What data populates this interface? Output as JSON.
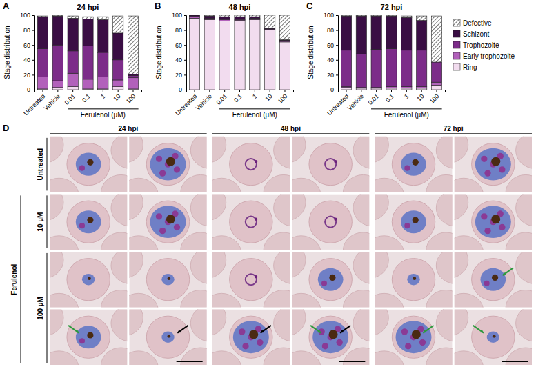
{
  "chart_data": [
    {
      "type": "bar",
      "stacked": true,
      "panel_label": "A",
      "title": "24 hpi",
      "ylabel": "Stage distribution",
      "categories": [
        "Untreated",
        "Vehicle",
        "0.01",
        "0.1",
        "1",
        "10",
        "100"
      ],
      "x_group": {
        "label": "Ferulenol (µM)",
        "categories": [
          "0.01",
          "0.1",
          "1",
          "10",
          "100"
        ]
      },
      "ylim": [
        0,
        100
      ],
      "yticks": [
        0,
        20,
        40,
        60,
        80,
        100
      ],
      "series": [
        {
          "name": "Ring",
          "color": "#f2dcef",
          "values": [
            1,
            3,
            4,
            1,
            1,
            4,
            1
          ]
        },
        {
          "name": "Early trophozoite",
          "color": "#b261bb",
          "values": [
            16,
            9,
            18,
            13,
            16,
            9,
            15
          ]
        },
        {
          "name": "Trophozoite",
          "color": "#7c2c89",
          "values": [
            38,
            48,
            30,
            45,
            33,
            27,
            3
          ]
        },
        {
          "name": "Schizont",
          "color": "#3a0e44",
          "values": [
            43,
            39,
            44,
            36,
            44,
            36,
            2
          ]
        },
        {
          "name": "Defective",
          "color": "#ffffff",
          "values": [
            1,
            1,
            3,
            3,
            4,
            23,
            78
          ]
        }
      ]
    },
    {
      "type": "bar",
      "stacked": true,
      "panel_label": "B",
      "title": "48 hpi",
      "ylabel": "Stage distribution",
      "categories": [
        "Untreated",
        "Vehicle",
        "0.01",
        "0.1",
        "1",
        "10",
        "100"
      ],
      "x_group": {
        "label": "Ferulenol (µM)",
        "categories": [
          "0.01",
          "0.1",
          "1",
          "10",
          "100"
        ]
      },
      "ylim": [
        0,
        100
      ],
      "yticks": [
        0,
        20,
        40,
        60,
        80,
        100
      ],
      "series": [
        {
          "name": "Ring",
          "color": "#f2dcef",
          "values": [
            96,
            94,
            92,
            93,
            94,
            80,
            64
          ]
        },
        {
          "name": "Early trophozoite",
          "color": "#b261bb",
          "values": [
            2,
            1,
            2,
            1,
            1,
            1,
            1
          ]
        },
        {
          "name": "Trophozoite",
          "color": "#7c2c89",
          "values": [
            1,
            1,
            1,
            1,
            1,
            1,
            1
          ]
        },
        {
          "name": "Schizont",
          "color": "#3a0e44",
          "values": [
            1,
            3,
            3,
            3,
            2,
            1,
            1
          ]
        },
        {
          "name": "Defective",
          "color": "#ffffff",
          "values": [
            0,
            1,
            2,
            2,
            2,
            17,
            33
          ]
        }
      ]
    },
    {
      "type": "bar",
      "stacked": true,
      "panel_label": "C",
      "title": "72 hpi",
      "ylabel": "Stage distribution",
      "categories": [
        "Untreated",
        "Vehicle",
        "0.01",
        "0.1",
        "1",
        "10",
        "100"
      ],
      "x_group": {
        "label": "Ferulenol (µM)",
        "categories": [
          "0.01",
          "0.1",
          "1",
          "10",
          "100"
        ]
      },
      "ylim": [
        0,
        100
      ],
      "yticks": [
        0,
        20,
        40,
        60,
        80,
        100
      ],
      "legend": "right",
      "series": [
        {
          "name": "Ring",
          "color": "#f2dcef",
          "values": [
            3,
            2,
            2,
            2,
            2,
            2,
            6
          ]
        },
        {
          "name": "Early trophozoite",
          "color": "#b261bb",
          "values": [
            1,
            1,
            1,
            2,
            2,
            2,
            4
          ]
        },
        {
          "name": "Trophozoite",
          "color": "#7c2c89",
          "values": [
            49,
            45,
            51,
            51,
            49,
            49,
            27
          ]
        },
        {
          "name": "Schizont",
          "color": "#3a0e44",
          "values": [
            46,
            51,
            45,
            44,
            44,
            40,
            0
          ]
        },
        {
          "name": "Defective",
          "color": "#ffffff",
          "values": [
            1,
            1,
            1,
            1,
            2,
            6,
            62
          ]
        }
      ]
    }
  ],
  "panel_d": {
    "letter": "D",
    "columns": [
      "24 hpi",
      "48 hpi",
      "72 hpi"
    ],
    "rows": [
      "Untreated",
      "10 µM",
      "100 µM"
    ],
    "group_label": "Ferulenol"
  }
}
